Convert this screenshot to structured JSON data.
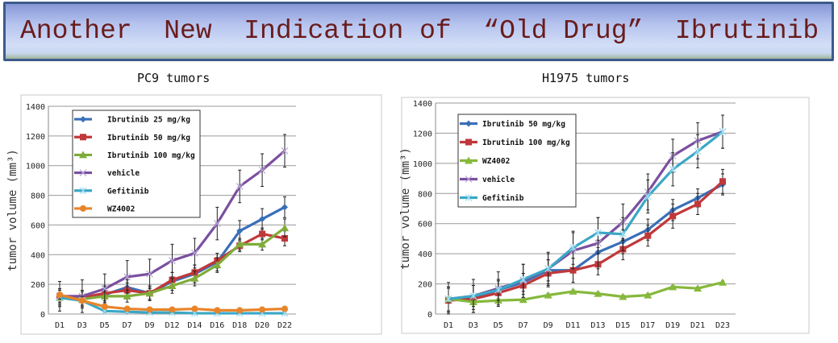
{
  "header": {
    "title": "Another  New  Indication of  “Old Drug”  Ibrutinib"
  },
  "chart_data": [
    {
      "type": "line",
      "title": "PC9 tumors",
      "xlabel": "",
      "ylabel": "tumor volume (mm³)",
      "ylim": [
        0,
        1400
      ],
      "yticks": [
        0,
        200,
        400,
        600,
        800,
        1000,
        1200,
        1400
      ],
      "grid": true,
      "legend_placement": "top-left",
      "categories": [
        "D1",
        "D3",
        "D5",
        "D7",
        "D9",
        "D12",
        "D14",
        "D16",
        "D18",
        "D20",
        "D22"
      ],
      "series": [
        {
          "name": "Ibrutinib 25 mg/kg",
          "color": "#3a6fb8",
          "marker": "diamond",
          "values": [
            110,
            100,
            130,
            180,
            140,
            220,
            270,
            350,
            560,
            640,
            720
          ],
          "error": [
            60,
            60,
            60,
            50,
            50,
            60,
            60,
            60,
            70,
            70,
            70
          ]
        },
        {
          "name": "Ibrutinib 50 mg/kg",
          "color": "#c0383a",
          "marker": "square",
          "values": [
            120,
            110,
            140,
            160,
            140,
            230,
            280,
            360,
            460,
            540,
            510
          ],
          "error": [
            50,
            50,
            50,
            50,
            50,
            50,
            50,
            50,
            40,
            40,
            50
          ]
        },
        {
          "name": "Ibrutinib 100 mg/kg",
          "color": "#7fac3a",
          "marker": "triangle",
          "values": [
            110,
            100,
            120,
            120,
            140,
            190,
            240,
            330,
            470,
            470,
            580
          ],
          "error": [
            50,
            50,
            40,
            40,
            40,
            50,
            50,
            50,
            40,
            40,
            60
          ]
        },
        {
          "name": "vehicle",
          "color": "#7b4fa0",
          "marker": "x",
          "values": [
            120,
            120,
            170,
            250,
            270,
            360,
            410,
            610,
            860,
            970,
            1100
          ],
          "error": [
            100,
            110,
            100,
            110,
            100,
            110,
            100,
            110,
            110,
            110,
            110
          ]
        },
        {
          "name": "Gefitinib",
          "color": "#3ba7c6",
          "marker": "star",
          "values": [
            110,
            90,
            20,
            15,
            10,
            10,
            5,
            5,
            5,
            5,
            5
          ],
          "error": [
            30,
            30,
            10,
            10,
            5,
            5,
            5,
            5,
            5,
            5,
            5
          ]
        },
        {
          "name": "WZ4002",
          "color": "#e8842a",
          "marker": "circle",
          "values": [
            130,
            90,
            50,
            35,
            30,
            30,
            35,
            25,
            25,
            30,
            35
          ],
          "error": [
            30,
            30,
            10,
            10,
            10,
            10,
            10,
            10,
            10,
            10,
            10
          ]
        }
      ]
    },
    {
      "type": "line",
      "title": "H1975 tumors",
      "xlabel": "",
      "ylabel": "tumor volume (mm³)",
      "ylim": [
        0,
        1400
      ],
      "yticks": [
        0,
        200,
        400,
        600,
        800,
        1000,
        1200,
        1400
      ],
      "grid": true,
      "legend_placement": "top-left",
      "categories": [
        "D1",
        "D3",
        "D5",
        "D7",
        "D9",
        "D11",
        "D13",
        "D15",
        "D17",
        "D19",
        "D21",
        "D23"
      ],
      "series": [
        {
          "name": "Ibrutinib 50 mg/kg",
          "color": "#3a6fb8",
          "marker": "diamond",
          "values": [
            100,
            110,
            160,
            210,
            290,
            290,
            410,
            480,
            560,
            690,
            770,
            860
          ],
          "error": [
            80,
            80,
            60,
            60,
            70,
            80,
            80,
            80,
            70,
            70,
            60,
            70
          ]
        },
        {
          "name": "Ibrutinib 100 mg/kg",
          "color": "#c0383a",
          "marker": "square",
          "values": [
            90,
            100,
            140,
            190,
            270,
            290,
            330,
            430,
            520,
            650,
            730,
            880
          ],
          "error": [
            80,
            90,
            90,
            80,
            90,
            80,
            70,
            70,
            70,
            80,
            70,
            80
          ]
        },
        {
          "name": "WZ4002",
          "color": "#86b83c",
          "marker": "triangle",
          "values": [
            100,
            80,
            90,
            95,
            125,
            150,
            135,
            115,
            125,
            180,
            170,
            210
          ],
          "error": [
            10,
            10,
            10,
            10,
            10,
            10,
            10,
            10,
            10,
            10,
            10,
            10
          ]
        },
        {
          "name": "vehicle",
          "color": "#7b4fa0",
          "marker": "x",
          "values": [
            100,
            120,
            170,
            220,
            300,
            420,
            470,
            610,
            810,
            1050,
            1150,
            1210
          ],
          "error": [
            110,
            110,
            110,
            110,
            110,
            120,
            170,
            120,
            120,
            110,
            120,
            110
          ]
        },
        {
          "name": "Gefitinib",
          "color": "#3ba7c6",
          "marker": "star",
          "values": [
            100,
            120,
            160,
            230,
            300,
            440,
            540,
            530,
            780,
            960,
            1080,
            1210
          ],
          "error": [
            80,
            70,
            70,
            100,
            100,
            110,
            100,
            110,
            110,
            110,
            110,
            110
          ]
        }
      ]
    }
  ]
}
